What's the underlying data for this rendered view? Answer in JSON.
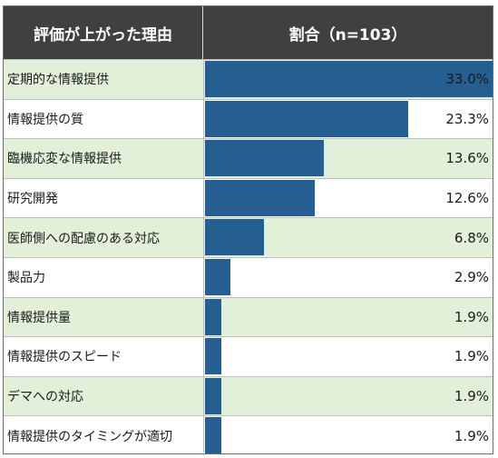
{
  "chart_data": {
    "type": "table",
    "header": {
      "reason": "評価が上がった理由",
      "ratio": "割合（n=103）"
    },
    "rows": [
      {
        "label": "定期的な情報提供",
        "value": 33.0,
        "display": "33.0%"
      },
      {
        "label": "情報提供の質",
        "value": 23.3,
        "display": "23.3%"
      },
      {
        "label": "臨機応変な情報提供",
        "value": 13.6,
        "display": "13.6%"
      },
      {
        "label": "研究開発",
        "value": 12.6,
        "display": "12.6%"
      },
      {
        "label": "医師側への配慮のある対応",
        "value": 6.8,
        "display": "6.8%"
      },
      {
        "label": "製品力",
        "value": 2.9,
        "display": "2.9%"
      },
      {
        "label": "情報提供量",
        "value": 1.9,
        "display": "1.9%"
      },
      {
        "label": "情報提供のスピード",
        "value": 1.9,
        "display": "1.9%"
      },
      {
        "label": "デマへの対応",
        "value": 1.9,
        "display": "1.9%"
      },
      {
        "label": "情報提供のタイミングが適切",
        "value": 1.9,
        "display": "1.9%"
      }
    ],
    "xlim": [
      0,
      33.0
    ],
    "colors": {
      "bar": "#255e91",
      "header_bg": "#404040",
      "alt_row": "#e2f0d9"
    }
  }
}
